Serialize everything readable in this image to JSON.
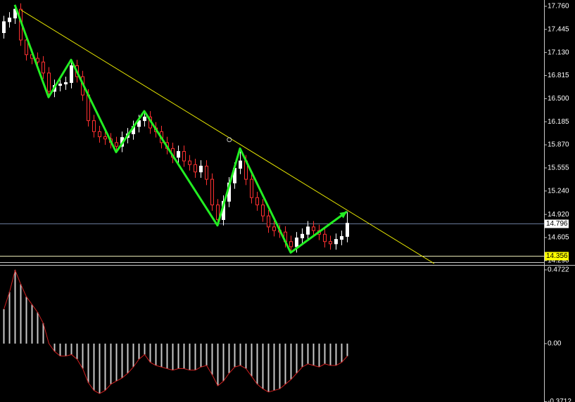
{
  "chart_data": [
    {
      "type": "candlestick",
      "open": [
        17.4,
        17.55,
        17.6,
        17.72,
        17.3,
        17.1,
        17.05,
        17.0,
        16.85,
        16.6,
        16.68,
        16.7,
        16.72,
        16.95,
        16.8,
        16.55,
        16.2,
        16.05,
        15.98,
        15.95,
        15.9,
        15.85,
        15.97,
        16.02,
        16.12,
        16.2,
        16.25,
        16.1,
        16.05,
        15.9,
        15.82,
        15.7,
        15.78,
        15.65,
        15.6,
        15.5,
        15.58,
        15.4,
        15.05,
        14.85,
        15.1,
        15.35,
        15.55,
        15.65,
        15.4,
        15.15,
        15.05,
        14.9,
        14.75,
        14.7,
        14.68,
        14.55,
        14.48,
        14.6,
        14.65,
        14.75,
        14.7,
        14.65,
        14.55,
        14.52,
        14.58,
        14.62
      ],
      "high": [
        17.63,
        17.68,
        17.78,
        17.8,
        17.38,
        17.18,
        17.13,
        17.08,
        16.93,
        16.76,
        16.78,
        16.8,
        17.03,
        17.03,
        16.88,
        16.63,
        16.28,
        16.13,
        16.06,
        16.03,
        15.98,
        16.05,
        16.1,
        16.2,
        16.28,
        16.33,
        16.33,
        16.18,
        16.13,
        15.98,
        15.9,
        15.86,
        15.86,
        15.73,
        15.68,
        15.66,
        15.66,
        15.48,
        15.13,
        15.18,
        15.43,
        15.63,
        15.82,
        15.73,
        15.48,
        15.23,
        15.13,
        14.98,
        14.83,
        14.78,
        14.76,
        14.63,
        14.68,
        14.73,
        14.83,
        14.83,
        14.78,
        14.73,
        14.63,
        14.66,
        14.7,
        14.96
      ],
      "low": [
        17.32,
        17.47,
        17.52,
        17.22,
        17.02,
        16.97,
        16.92,
        16.77,
        16.52,
        16.52,
        16.6,
        16.62,
        16.64,
        16.72,
        16.47,
        16.12,
        15.97,
        15.9,
        15.87,
        15.82,
        15.77,
        15.77,
        15.89,
        15.94,
        16.04,
        16.12,
        16.02,
        15.97,
        15.82,
        15.74,
        15.62,
        15.62,
        15.57,
        15.52,
        15.42,
        15.42,
        15.32,
        14.97,
        14.77,
        14.77,
        15.02,
        15.27,
        15.47,
        15.32,
        15.07,
        14.97,
        14.82,
        14.67,
        14.62,
        14.6,
        14.47,
        14.4,
        14.4,
        14.52,
        14.57,
        14.62,
        14.57,
        14.47,
        14.44,
        14.44,
        14.5,
        14.54
      ],
      "close": [
        17.55,
        17.6,
        17.72,
        17.3,
        17.1,
        17.05,
        17.0,
        16.85,
        16.6,
        16.68,
        16.7,
        16.72,
        16.95,
        16.8,
        16.55,
        16.2,
        16.05,
        15.98,
        15.95,
        15.9,
        15.85,
        15.97,
        16.02,
        16.12,
        16.2,
        16.25,
        16.1,
        16.05,
        15.9,
        15.82,
        15.7,
        15.78,
        15.65,
        15.6,
        15.5,
        15.58,
        15.4,
        15.05,
        14.85,
        15.1,
        15.35,
        15.55,
        15.65,
        15.4,
        15.15,
        15.05,
        14.9,
        14.75,
        14.7,
        14.68,
        14.55,
        14.48,
        14.6,
        14.65,
        14.75,
        14.7,
        14.65,
        14.55,
        14.52,
        14.58,
        14.62,
        14.8
      ],
      "up_color": "#ffffff",
      "down_color": "#000000",
      "up_wick": "#ffffff",
      "down_wick": "#ff3030",
      "zigzag": {
        "x": [
          2,
          8,
          12,
          20,
          25,
          38,
          42,
          51,
          61
        ],
        "values": [
          17.78,
          16.52,
          17.03,
          15.77,
          16.33,
          14.77,
          15.82,
          14.4,
          14.96
        ],
        "color": "#22ee22"
      },
      "trendline": {
        "x": [
          3.1,
          76.5
        ],
        "values": [
          17.71,
          14.25
        ],
        "color": "#e6e600"
      },
      "marker": {
        "x": 40.1,
        "value": 15.94,
        "color": "#c0c0c0"
      },
      "hlines": [
        {
          "value": 14.796,
          "color": "#6a7a9a",
          "label_bg": "#ffffff"
        },
        {
          "value": 14.356,
          "color": "#e6e6b4",
          "label_bg": "#ffff00"
        }
      ],
      "ylim": [
        14.279,
        17.846
      ],
      "yticks": [
        {
          "value": 17.76,
          "label": "17.760"
        },
        17.445,
        {
          "value": 17.13,
          "label": "17.130"
        },
        16.815,
        {
          "value": 16.5,
          "label": "16.500"
        },
        16.185,
        {
          "value": 15.87,
          "label": "15.870"
        },
        15.555,
        {
          "value": 15.24,
          "label": "15.240"
        },
        {
          "value": 14.92,
          "label": "14.920"
        },
        14.605,
        {
          "value": 14.29,
          "label": "14.290"
        }
      ]
    },
    {
      "type": "histogram-oscillator",
      "values": [
        0.22,
        0.33,
        0.47,
        0.38,
        0.3,
        0.25,
        0.2,
        0.13,
        0.0,
        -0.05,
        -0.08,
        -0.08,
        -0.07,
        -0.1,
        -0.16,
        -0.25,
        -0.3,
        -0.32,
        -0.3,
        -0.26,
        -0.24,
        -0.22,
        -0.19,
        -0.15,
        -0.1,
        -0.07,
        -0.12,
        -0.14,
        -0.15,
        -0.16,
        -0.17,
        -0.16,
        -0.16,
        -0.17,
        -0.17,
        -0.15,
        -0.14,
        -0.2,
        -0.27,
        -0.24,
        -0.19,
        -0.15,
        -0.14,
        -0.16,
        -0.21,
        -0.26,
        -0.29,
        -0.31,
        -0.3,
        -0.29,
        -0.26,
        -0.23,
        -0.19,
        -0.15,
        -0.13,
        -0.14,
        -0.15,
        -0.13,
        -0.14,
        -0.14,
        -0.12,
        -0.08
      ],
      "color": "#c8c8c8",
      "line_color": "#d02020",
      "ylim": [
        -0.3739,
        0.499
      ],
      "yticks": [
        0.4722,
        {
          "value": 0,
          "label": "0.00"
        },
        -0.3712
      ]
    }
  ]
}
